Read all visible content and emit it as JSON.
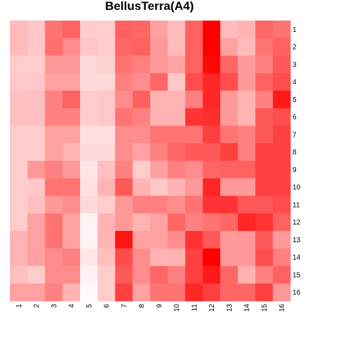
{
  "chart_data": {
    "type": "heatmap",
    "title": "BellusTerra(A4)",
    "xlabel": "",
    "ylabel": "",
    "x_categories": [
      "1",
      "2",
      "3",
      "4",
      "5",
      "6",
      "7",
      "8",
      "9",
      "10",
      "11",
      "12",
      "13",
      "14",
      "15",
      "16"
    ],
    "y_categories": [
      "1",
      "2",
      "3",
      "4",
      "5",
      "6",
      "7",
      "8",
      "9",
      "10",
      "11",
      "12",
      "13",
      "14",
      "15",
      "16"
    ],
    "value_range": [
      0,
      1
    ],
    "colors": {
      "low": "#ffffff",
      "high": "#ff0000"
    },
    "grid": false,
    "legend": "none",
    "values": [
      [
        0.27,
        0.22,
        0.55,
        0.62,
        0.2,
        0.2,
        0.62,
        0.6,
        0.37,
        0.27,
        0.62,
        1.0,
        0.27,
        0.3,
        0.6,
        0.55
      ],
      [
        0.27,
        0.22,
        0.57,
        0.45,
        0.22,
        0.2,
        0.6,
        0.62,
        0.4,
        0.27,
        0.62,
        1.0,
        0.37,
        0.27,
        0.55,
        0.62
      ],
      [
        0.2,
        0.2,
        0.4,
        0.4,
        0.15,
        0.18,
        0.55,
        0.5,
        0.4,
        0.37,
        0.62,
        0.97,
        0.6,
        0.4,
        0.5,
        0.65
      ],
      [
        0.22,
        0.22,
        0.37,
        0.37,
        0.15,
        0.15,
        0.5,
        0.45,
        0.6,
        0.22,
        0.7,
        0.85,
        0.7,
        0.4,
        0.62,
        0.7
      ],
      [
        0.25,
        0.25,
        0.5,
        0.62,
        0.2,
        0.22,
        0.45,
        0.62,
        0.3,
        0.3,
        0.5,
        0.85,
        0.4,
        0.3,
        0.5,
        0.9
      ],
      [
        0.25,
        0.25,
        0.5,
        0.5,
        0.2,
        0.22,
        0.55,
        0.5,
        0.3,
        0.3,
        0.8,
        0.82,
        0.4,
        0.3,
        0.65,
        0.7
      ],
      [
        0.2,
        0.2,
        0.37,
        0.37,
        0.12,
        0.12,
        0.45,
        0.45,
        0.55,
        0.55,
        0.55,
        0.75,
        0.55,
        0.5,
        0.65,
        0.75
      ],
      [
        0.2,
        0.2,
        0.37,
        0.3,
        0.15,
        0.15,
        0.45,
        0.37,
        0.5,
        0.6,
        0.65,
        0.65,
        0.75,
        0.5,
        0.75,
        0.75
      ],
      [
        0.2,
        0.4,
        0.5,
        0.4,
        0.1,
        0.25,
        0.5,
        0.2,
        0.37,
        0.5,
        0.45,
        0.6,
        0.62,
        0.62,
        0.75,
        0.75
      ],
      [
        0.2,
        0.22,
        0.55,
        0.55,
        0.12,
        0.3,
        0.65,
        0.3,
        0.22,
        0.3,
        0.4,
        0.85,
        0.4,
        0.4,
        0.75,
        0.75
      ],
      [
        0.2,
        0.25,
        0.4,
        0.45,
        0.15,
        0.2,
        0.4,
        0.5,
        0.5,
        0.45,
        0.55,
        0.8,
        0.8,
        0.65,
        0.65,
        0.7
      ],
      [
        0.2,
        0.37,
        0.55,
        0.37,
        0.05,
        0.3,
        0.4,
        0.3,
        0.37,
        0.6,
        0.5,
        0.55,
        0.6,
        0.85,
        0.8,
        0.62
      ],
      [
        0.3,
        0.37,
        0.55,
        0.37,
        0.05,
        0.3,
        0.92,
        0.37,
        0.37,
        0.45,
        0.8,
        0.65,
        0.4,
        0.4,
        0.65,
        0.4
      ],
      [
        0.3,
        0.37,
        0.45,
        0.5,
        0.1,
        0.25,
        0.7,
        0.45,
        0.3,
        0.3,
        0.75,
        1.0,
        0.4,
        0.4,
        0.7,
        0.5
      ],
      [
        0.25,
        0.2,
        0.45,
        0.45,
        0.05,
        0.2,
        0.65,
        0.45,
        0.6,
        0.5,
        0.75,
        0.9,
        0.6,
        0.3,
        0.5,
        0.62
      ],
      [
        0.37,
        0.37,
        0.5,
        0.3,
        0.02,
        0.2,
        0.75,
        0.37,
        0.55,
        0.55,
        0.85,
        0.75,
        0.6,
        0.6,
        0.75,
        0.4
      ]
    ]
  }
}
